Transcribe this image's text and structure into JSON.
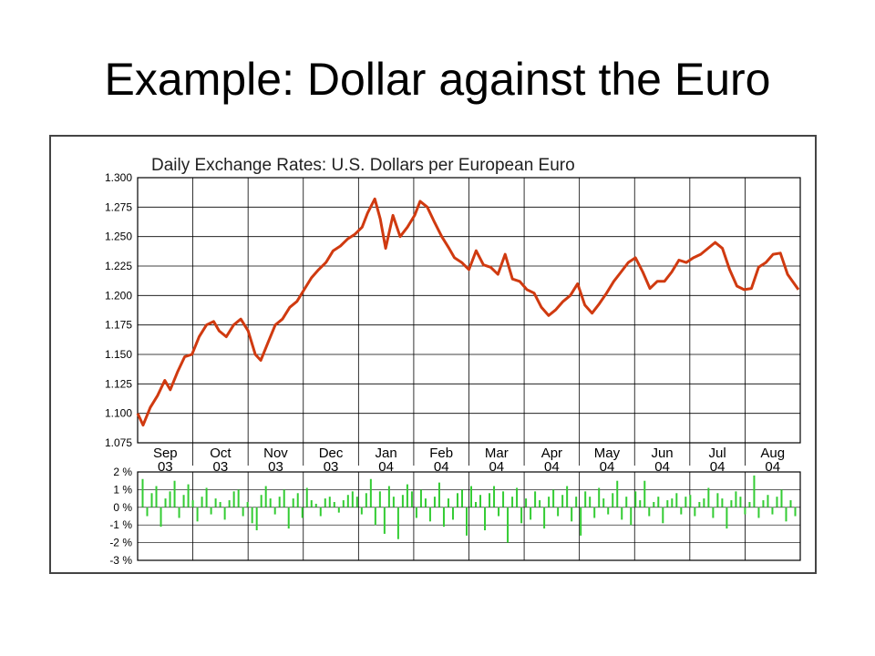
{
  "slide": {
    "title": "Example: Dollar against the Euro"
  },
  "chart_data": [
    {
      "type": "line",
      "title": "Daily Exchange Rates: U.S. Dollars per European Euro",
      "xlabel": "",
      "ylabel": "",
      "ylim": [
        1.075,
        1.3
      ],
      "yticks": [
        "1.300",
        "1.275",
        "1.250",
        "1.225",
        "1.200",
        "1.175",
        "1.150",
        "1.125",
        "1.100",
        "1.075"
      ],
      "grid": true,
      "month_labels": [
        {
          "month": "Sep",
          "year": "03"
        },
        {
          "month": "Oct",
          "year": "03"
        },
        {
          "month": "Nov",
          "year": "03"
        },
        {
          "month": "Dec",
          "year": "03"
        },
        {
          "month": "Jan",
          "year": "04"
        },
        {
          "month": "Feb",
          "year": "04"
        },
        {
          "month": "Mar",
          "year": "04"
        },
        {
          "month": "Apr",
          "year": "04"
        },
        {
          "month": "May",
          "year": "04"
        },
        {
          "month": "Jun",
          "year": "04"
        },
        {
          "month": "Jul",
          "year": "04"
        },
        {
          "month": "Aug",
          "year": "04"
        }
      ],
      "series": [
        {
          "color": "#d03a10",
          "x": [
            "2003-09-01",
            "2003-09-04",
            "2003-09-08",
            "2003-09-12",
            "2003-09-16",
            "2003-09-19",
            "2003-09-23",
            "2003-09-27",
            "2003-10-01",
            "2003-10-05",
            "2003-10-09",
            "2003-10-13",
            "2003-10-16",
            "2003-10-20",
            "2003-10-24",
            "2003-10-28",
            "2003-11-01",
            "2003-11-05",
            "2003-11-08",
            "2003-11-12",
            "2003-11-16",
            "2003-11-20",
            "2003-11-24",
            "2003-11-28",
            "2003-12-02",
            "2003-12-06",
            "2003-12-10",
            "2003-12-14",
            "2003-12-18",
            "2003-12-22",
            "2003-12-26",
            "2003-12-30",
            "2004-01-03",
            "2004-01-06",
            "2004-01-10",
            "2004-01-13",
            "2004-01-16",
            "2004-01-20",
            "2004-01-24",
            "2004-01-28",
            "2004-02-01",
            "2004-02-04",
            "2004-02-08",
            "2004-02-12",
            "2004-02-16",
            "2004-02-20",
            "2004-02-23",
            "2004-02-27",
            "2004-03-02",
            "2004-03-06",
            "2004-03-10",
            "2004-03-14",
            "2004-03-18",
            "2004-03-22",
            "2004-03-26",
            "2004-03-30",
            "2004-04-03",
            "2004-04-07",
            "2004-04-11",
            "2004-04-15",
            "2004-04-19",
            "2004-04-23",
            "2004-04-27",
            "2004-05-01",
            "2004-05-05",
            "2004-05-09",
            "2004-05-13",
            "2004-05-17",
            "2004-05-21",
            "2004-05-25",
            "2004-05-29",
            "2004-06-02",
            "2004-06-06",
            "2004-06-10",
            "2004-06-14",
            "2004-06-18",
            "2004-06-22",
            "2004-06-26",
            "2004-06-30",
            "2004-07-04",
            "2004-07-08",
            "2004-07-12",
            "2004-07-16",
            "2004-07-20",
            "2004-07-24",
            "2004-07-28",
            "2004-08-01",
            "2004-08-05",
            "2004-08-09",
            "2004-08-13",
            "2004-08-17",
            "2004-08-21",
            "2004-08-25",
            "2004-08-31"
          ],
          "values": [
            1.1,
            1.09,
            1.105,
            1.115,
            1.128,
            1.12,
            1.135,
            1.148,
            1.15,
            1.165,
            1.175,
            1.178,
            1.17,
            1.165,
            1.175,
            1.18,
            1.17,
            1.15,
            1.145,
            1.16,
            1.175,
            1.18,
            1.19,
            1.195,
            1.205,
            1.215,
            1.222,
            1.228,
            1.238,
            1.242,
            1.248,
            1.252,
            1.258,
            1.27,
            1.282,
            1.265,
            1.24,
            1.268,
            1.25,
            1.258,
            1.268,
            1.28,
            1.275,
            1.262,
            1.25,
            1.24,
            1.232,
            1.228,
            1.222,
            1.238,
            1.226,
            1.224,
            1.218,
            1.235,
            1.214,
            1.212,
            1.205,
            1.202,
            1.19,
            1.183,
            1.188,
            1.195,
            1.2,
            1.21,
            1.192,
            1.185,
            1.193,
            1.202,
            1.212,
            1.22,
            1.228,
            1.232,
            1.22,
            1.206,
            1.212,
            1.212,
            1.22,
            1.23,
            1.228,
            1.232,
            1.235,
            1.24,
            1.245,
            1.24,
            1.222,
            1.208,
            1.205,
            1.206,
            1.224,
            1.228,
            1.235,
            1.236,
            1.218,
            1.205
          ]
        }
      ]
    },
    {
      "type": "bar",
      "title": "",
      "ylim": [
        -3,
        2
      ],
      "yticks": [
        "2 %",
        "1 %",
        "0 %",
        "-1 %",
        "-2 %",
        "-3 %"
      ],
      "grid": true,
      "series": [
        {
          "color": "#33cc33",
          "values": [
            1.6,
            -0.5,
            0.8,
            1.2,
            -1.1,
            0.5,
            0.9,
            1.5,
            -0.6,
            0.7,
            1.3,
            0.4,
            -0.8,
            0.6,
            1.1,
            -0.4,
            0.5,
            0.3,
            -0.7,
            0.4,
            0.9,
            1.0,
            -0.5,
            0.3,
            -0.9,
            -1.3,
            0.7,
            1.2,
            0.5,
            -0.4,
            0.6,
            1.0,
            -1.2,
            0.5,
            0.8,
            -0.6,
            1.1,
            0.4,
            0.2,
            -0.5,
            0.5,
            0.6,
            0.3,
            -0.3,
            0.4,
            0.7,
            0.9,
            0.6,
            -0.4,
            0.8,
            1.6,
            -1.0,
            0.9,
            -1.5,
            1.2,
            0.6,
            -1.8,
            0.7,
            1.3,
            0.9,
            -0.6,
            1.0,
            0.5,
            -0.8,
            0.6,
            1.4,
            -1.1,
            0.5,
            -0.7,
            0.8,
            1.0,
            -1.6,
            1.2,
            0.3,
            0.7,
            -1.3,
            0.8,
            1.2,
            -0.5,
            0.9,
            -2.0,
            0.6,
            1.1,
            -0.9,
            0.5,
            -0.7,
            0.9,
            0.4,
            -1.2,
            0.6,
            1.0,
            -0.5,
            0.7,
            1.2,
            -0.8,
            0.6,
            -1.6,
            0.9,
            0.6,
            -0.6,
            1.1,
            0.5,
            -0.4,
            0.8,
            1.5,
            -0.7,
            0.6,
            -1.0,
            0.9,
            0.4,
            1.5,
            -0.5,
            0.3,
            0.6,
            -0.9,
            0.4,
            0.5,
            0.8,
            -0.4,
            0.6,
            0.7,
            -0.5,
            0.3,
            0.5,
            1.1,
            -0.6,
            0.8,
            0.5,
            -1.2,
            0.4,
            0.9,
            0.6,
            -0.4,
            0.3,
            1.8,
            -0.6,
            0.4,
            0.7,
            -0.4,
            0.6,
            1.0,
            -0.8,
            0.4,
            -0.5
          ]
        }
      ]
    }
  ]
}
